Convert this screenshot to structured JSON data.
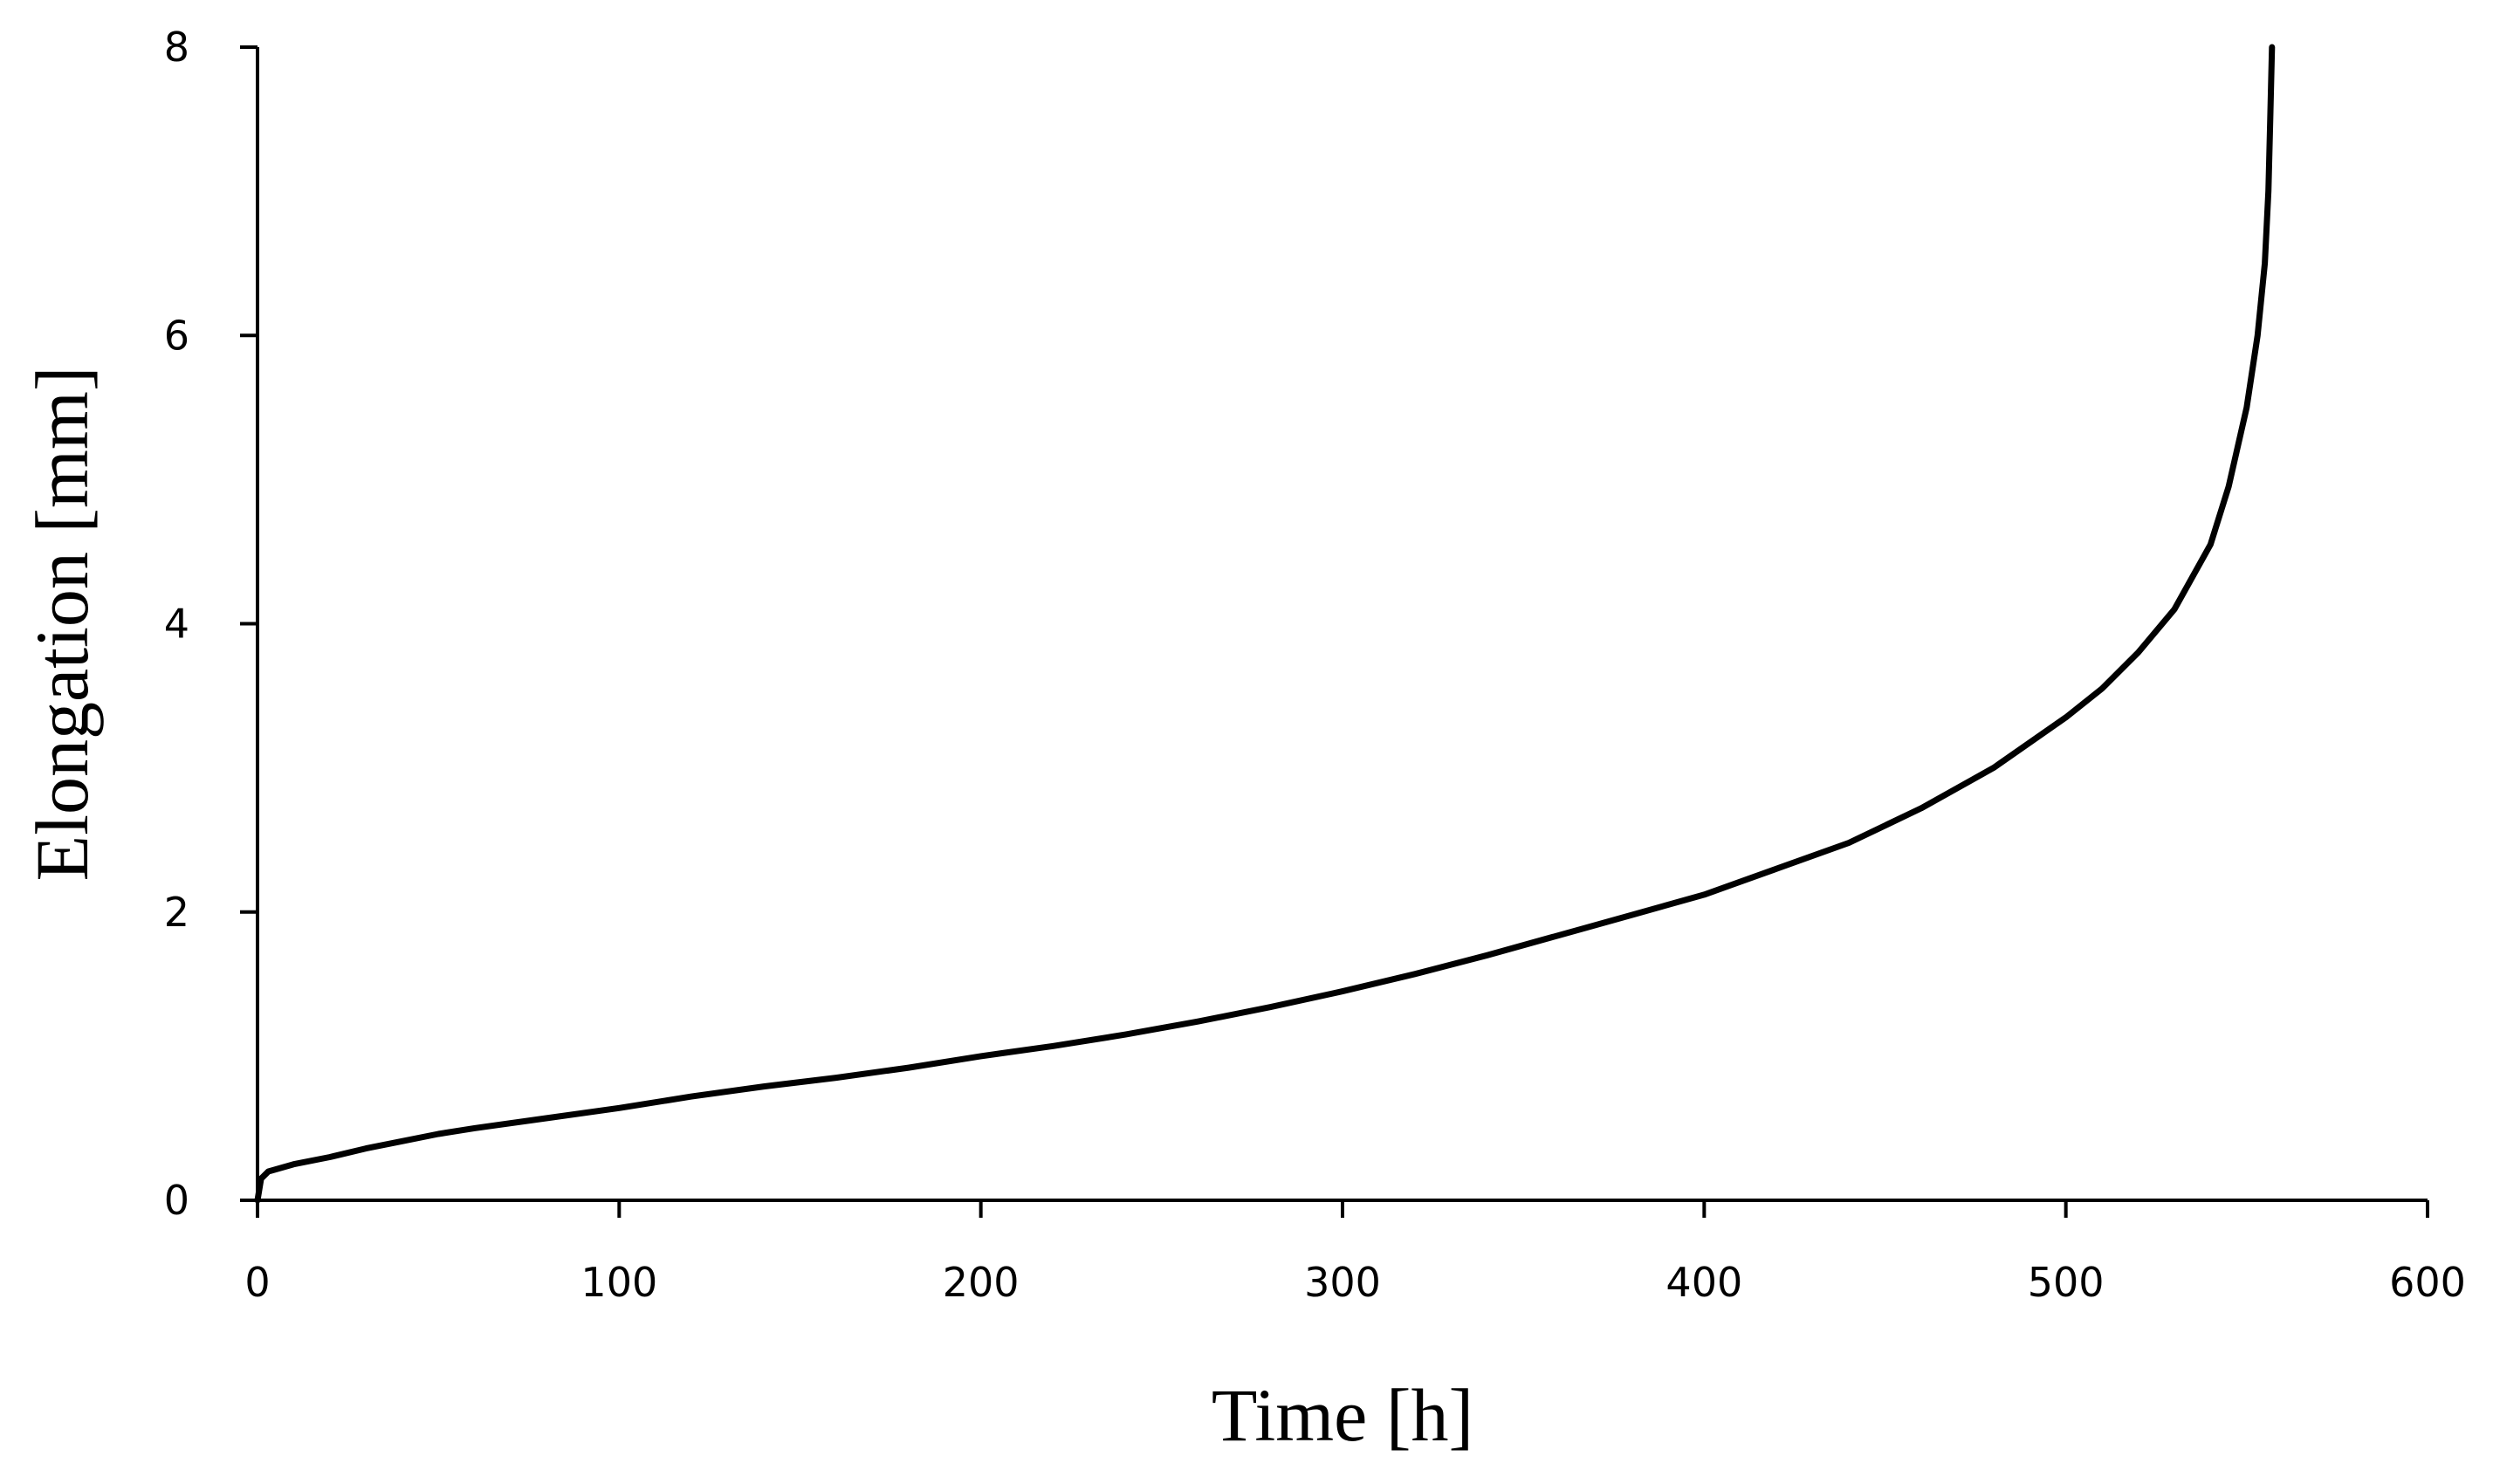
{
  "chart_data": {
    "type": "line",
    "title": "",
    "xlabel": "Time [h]",
    "ylabel": "Elongation [mm]",
    "xlim": [
      0,
      600
    ],
    "ylim": [
      0,
      8
    ],
    "x_ticks": [
      0,
      100,
      200,
      300,
      400,
      500,
      600
    ],
    "y_ticks": [
      0,
      2,
      4,
      6,
      8
    ],
    "x_tick_labels": [
      "0",
      "100",
      "200",
      "300",
      "400",
      "500",
      "600"
    ],
    "y_tick_labels": [
      "0",
      "2",
      "4",
      "6",
      "8"
    ],
    "grid": false,
    "legend": "none",
    "colors": {
      "line": "#000000",
      "axis": "#000000",
      "background": "#ffffff"
    },
    "series": [
      {
        "name": "Elongation",
        "x": [
          0,
          1,
          3,
          10,
          20,
          30,
          40,
          50,
          60,
          80,
          100,
          120,
          140,
          160,
          180,
          200,
          220,
          240,
          260,
          280,
          300,
          320,
          340,
          360,
          380,
          400,
          420,
          440,
          460,
          480,
          500,
          510,
          520,
          530,
          540,
          545,
          550,
          553,
          555,
          556,
          556.5,
          557
        ],
        "y": [
          0.0,
          0.15,
          0.2,
          0.25,
          0.3,
          0.36,
          0.41,
          0.46,
          0.5,
          0.57,
          0.64,
          0.72,
          0.79,
          0.85,
          0.92,
          1.0,
          1.07,
          1.15,
          1.24,
          1.34,
          1.45,
          1.57,
          1.7,
          1.84,
          1.98,
          2.12,
          2.3,
          2.48,
          2.72,
          3.0,
          3.35,
          3.55,
          3.8,
          4.1,
          4.55,
          4.95,
          5.5,
          6.0,
          6.5,
          7.0,
          7.5,
          8.0
        ]
      }
    ]
  }
}
